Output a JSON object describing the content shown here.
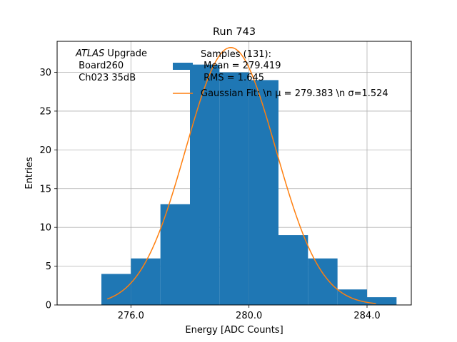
{
  "chart_data": {
    "type": "bar",
    "title": "Run 743",
    "xlabel": "Energy [ADC Counts]",
    "ylabel": "Entries",
    "xlim": [
      273.5,
      285.5
    ],
    "ylim": [
      0,
      34
    ],
    "xticks": [
      276.0,
      280.0,
      284.0
    ],
    "xtick_labels": [
      "276.0",
      "280.0",
      "284.0"
    ],
    "yticks": [
      0,
      5,
      10,
      15,
      20,
      25,
      30
    ],
    "ytick_labels": [
      "0",
      "5",
      "10",
      "15",
      "20",
      "25",
      "30"
    ],
    "grid": true,
    "legend_position": "top-center",
    "annotation": {
      "line1_italic": "ATLAS",
      "line1_rest": " Upgrade",
      "line2": " Board260",
      "line3": " Ch023 35dB"
    },
    "histogram": {
      "name": "Samples (131):",
      "legend_lines": [
        "Samples (131):",
        " Mean = 279.419",
        " RMS = 1.645"
      ],
      "color": "#1f77b4",
      "bin_edges": [
        275,
        276,
        277,
        278,
        279,
        280,
        281,
        282,
        283,
        284,
        285
      ],
      "counts": [
        4,
        6,
        13,
        31,
        30,
        29,
        9,
        6,
        2,
        1
      ]
    },
    "fit": {
      "legend_label": "Gaussian Fit: \\n μ = 279.383 \\n σ=1.524",
      "color": "#ff7f0e",
      "mu": 279.383,
      "sigma": 1.524,
      "amplitude": 33.2,
      "x_range": [
        275.2,
        284.3
      ]
    }
  }
}
